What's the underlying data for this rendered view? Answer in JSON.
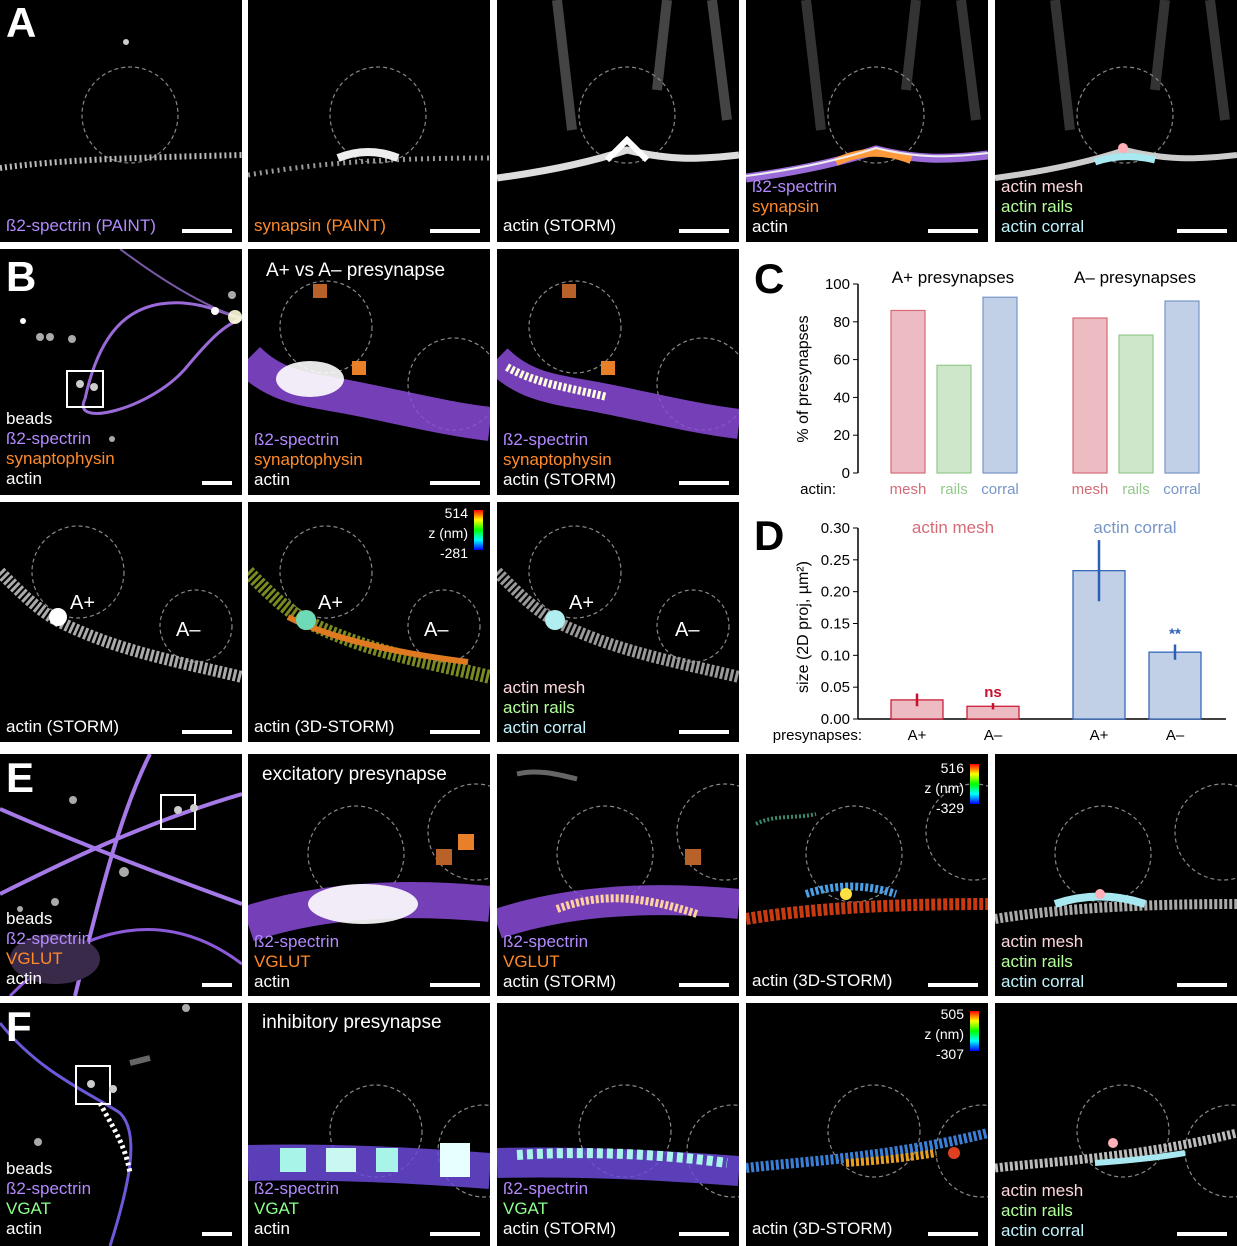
{
  "panels": {
    "A": {
      "letter": "A",
      "p1": {
        "lines": [
          "ß2-spectrin (PAINT)"
        ]
      },
      "p2": {
        "lines": [
          "synapsin (PAINT)"
        ]
      },
      "p3": {
        "lines": [
          "actin (STORM)"
        ]
      },
      "p4": {
        "lines": [
          "ß2-spectrin",
          "synapsin",
          "actin"
        ]
      },
      "p5": {
        "lines": [
          "actin mesh",
          "actin rails",
          "actin corral"
        ]
      }
    },
    "B": {
      "letter": "B",
      "title": "A+ vs A– presynapse",
      "p1": {
        "lines": [
          "beads",
          "ß2-spectrin",
          "synaptophysin",
          "actin"
        ]
      },
      "p2": {
        "lines": [
          "ß2-spectrin",
          "synaptophysin",
          "actin"
        ]
      },
      "p3": {
        "lines": [
          "ß2-spectrin",
          "synaptophysin",
          "actin (STORM)"
        ]
      },
      "p4": {
        "lines": [
          "actin (STORM)"
        ]
      },
      "p5": {
        "lines": [
          "actin (3D-STORM)"
        ]
      },
      "p6": {
        "lines": [
          "actin mesh",
          "actin rails",
          "actin corral"
        ]
      },
      "aplus": "A+",
      "aminus": "A–",
      "zscale": {
        "max": "514",
        "label": "z (nm)",
        "min": "-281"
      }
    },
    "E": {
      "letter": "E",
      "title": "excitatory presynapse",
      "p1": {
        "lines": [
          "beads",
          "ß2-spectrin",
          "VGLUT",
          "actin"
        ]
      },
      "p2": {
        "lines": [
          "ß2-spectrin",
          "VGLUT",
          "actin"
        ]
      },
      "p3": {
        "lines": [
          "ß2-spectrin",
          "VGLUT",
          "actin (STORM)"
        ]
      },
      "p4": {
        "lines": [
          "actin (3D-STORM)"
        ]
      },
      "p5": {
        "lines": [
          "actin mesh",
          "actin rails",
          "actin corral"
        ]
      },
      "zscale": {
        "max": "516",
        "label": "z (nm)",
        "min": "-329"
      }
    },
    "F": {
      "letter": "F",
      "title": "inhibitory presynapse",
      "p1": {
        "lines": [
          "beads",
          "ß2-spectrin",
          "VGAT",
          "actin"
        ]
      },
      "p2": {
        "lines": [
          "ß2-spectrin",
          "VGAT",
          "actin"
        ]
      },
      "p3": {
        "lines": [
          "ß2-spectrin",
          "VGAT",
          "actin (STORM)"
        ]
      },
      "p4": {
        "lines": [
          "actin (3D-STORM)"
        ]
      },
      "p5": {
        "lines": [
          "actin mesh",
          "actin rails",
          "actin corral"
        ]
      },
      "zscale": {
        "max": "505",
        "label": "z (nm)",
        "min": "-307"
      }
    }
  },
  "colors": {
    "mesh": "#d66a77",
    "rails": "#93c98a",
    "corral": "#7696c8"
  },
  "chart_data": [
    {
      "id": "C",
      "type": "bar",
      "letter": "C",
      "ylabel": "% of presynapses",
      "xlabel": "actin:",
      "ylim": [
        0,
        100
      ],
      "yticks": [
        0,
        20,
        40,
        60,
        80,
        100
      ],
      "groups": [
        {
          "title": "A+ presynapses",
          "bars": [
            {
              "category": "mesh",
              "value": 86
            },
            {
              "category": "rails",
              "value": 57
            },
            {
              "category": "corral",
              "value": 93
            }
          ]
        },
        {
          "title": "A– presynapses",
          "bars": [
            {
              "category": "mesh",
              "value": 82
            },
            {
              "category": "rails",
              "value": 73
            },
            {
              "category": "corral",
              "value": 91
            }
          ]
        }
      ]
    },
    {
      "id": "D",
      "type": "bar",
      "letter": "D",
      "ylabel": "size (2D proj, µm²)",
      "xlabel": "presynapses:",
      "ylim": [
        0,
        0.3
      ],
      "yticks": [
        "0.00",
        "0.05",
        "0.10",
        "0.15",
        "0.20",
        "0.25",
        "0.30"
      ],
      "groups": [
        {
          "title": "actin mesh",
          "color": "mesh",
          "bars": [
            {
              "category": "A+",
              "value": 0.03,
              "err": 0.01
            },
            {
              "category": "A–",
              "value": 0.02,
              "err": 0.005,
              "annotation": "ns"
            }
          ]
        },
        {
          "title": "actin corral",
          "color": "corral",
          "bars": [
            {
              "category": "A+",
              "value": 0.233,
              "err": 0.048
            },
            {
              "category": "A–",
              "value": 0.105,
              "err": 0.012,
              "annotation": "**"
            }
          ]
        }
      ]
    }
  ]
}
